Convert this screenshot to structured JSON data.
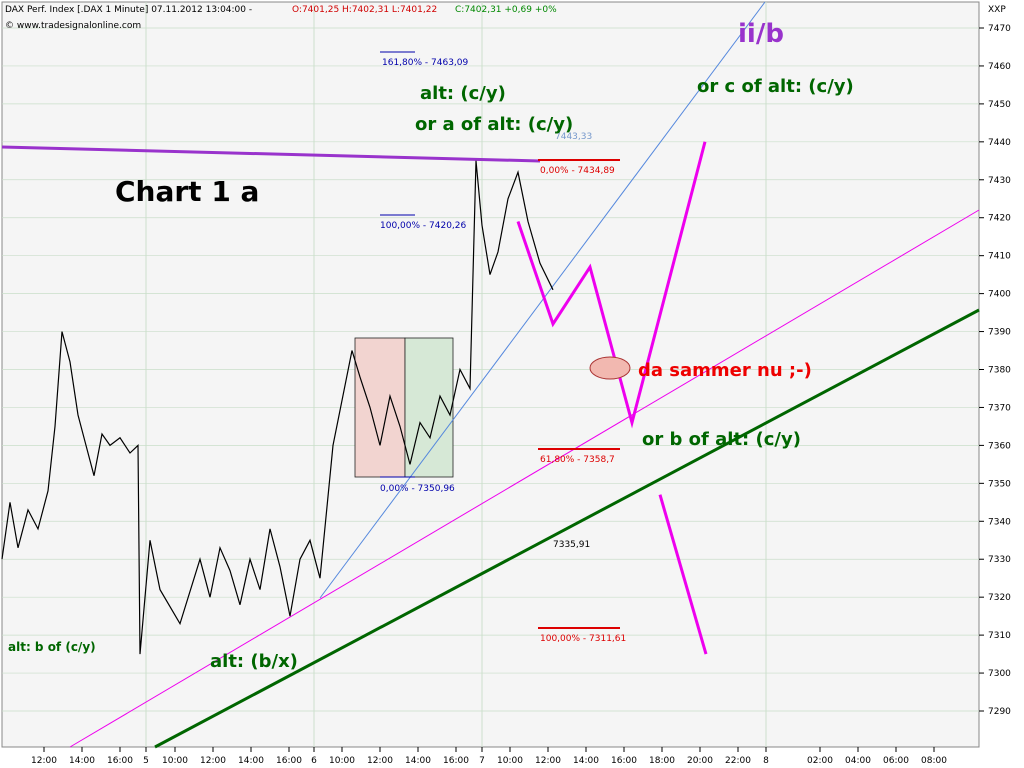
{
  "header": {
    "instrument": "DAX Perf. Index [.DAX  1 Minute] 07.11.2012 13:04:00 -",
    "ohl": "O:7401,25 H:7402,31 L:7401,22",
    "close": "C:7402,31 +0,69 +0%",
    "copyright": "© www.tradesignalonline.com",
    "axis_unit": "XXP"
  },
  "colors": {
    "background": "#f5f5f5",
    "grid": "#c9dec9",
    "price": "#000000",
    "purple_line": "#9933cc",
    "magenta": "#ee00ee",
    "green_line": "#006600",
    "fib_blue": "#0000aa",
    "fib_red": "#dd0000",
    "annotation_green": "#006600",
    "annotation_red": "#ee0000",
    "annotation_purple": "#9933cc"
  },
  "chart_data": {
    "type": "line",
    "title": "Chart 1 a",
    "ylim": [
      7280,
      7475
    ],
    "y_ticks": [
      "7290",
      "7300",
      "7310",
      "7320",
      "7330",
      "7340",
      "7350",
      "7360",
      "7370",
      "7380",
      "7390",
      "7400",
      "7410",
      "7420",
      "7430",
      "7440",
      "7450",
      "7460",
      "7470"
    ],
    "x_ticks": [
      "12:00",
      "14:00",
      "16:00",
      "5",
      "10:00",
      "12:00",
      "14:00",
      "16:00",
      "6",
      "10:00",
      "12:00",
      "14:00",
      "16:00",
      "7",
      "10:00",
      "12:00",
      "14:00",
      "16:00",
      "18:00",
      "20:00",
      "22:00",
      "8",
      "02:00",
      "04:00",
      "06:00",
      "08:00"
    ],
    "series": [
      {
        "type": "price",
        "values": [
          7330,
          7345,
          7333,
          7343,
          7338,
          7348,
          7365,
          7390,
          7382,
          7368,
          7360,
          7352,
          7363,
          7360,
          7362,
          7358,
          7360,
          7305,
          7335,
          7322,
          7313,
          7330,
          7320,
          7333,
          7327,
          7318,
          7330,
          7322,
          7338,
          7328,
          7315,
          7330,
          7335,
          7325,
          7360,
          7385,
          7378,
          7370,
          7360,
          7373,
          7365,
          7355,
          7366,
          7362,
          7373,
          7368,
          7380,
          7375,
          7435,
          7418,
          7405,
          7411,
          7425,
          7432,
          7419,
          7408,
          7401
        ]
      },
      {
        "type": "projection",
        "values": [
          7419,
          7392,
          7407,
          7366,
          7440,
          7347,
          7305
        ]
      }
    ],
    "fib_levels": [
      {
        "label": "161,80% - 7463,09",
        "value": 7463.09,
        "color": "blue"
      },
      {
        "label": "100,00% - 7420,26",
        "value": 7420.26,
        "color": "blue"
      },
      {
        "label": "0,00% - 7350,96",
        "value": 7350.96,
        "color": "blue"
      },
      {
        "label": "0,00% - 7434,89",
        "value": 7434.89,
        "color": "red"
      },
      {
        "label": "61,80% - 7358,7",
        "value": 7358.7,
        "color": "red"
      },
      {
        "label": "100,00% - 7311,61",
        "value": 7311.61,
        "color": "red"
      }
    ],
    "level_labels": [
      "7443,33",
      "7335,91"
    ],
    "annotations": [
      {
        "text": "ii/b",
        "color": "purple"
      },
      {
        "text": "or c of alt: (c/y)",
        "color": "green"
      },
      {
        "text": "alt: (c/y)",
        "color": "green"
      },
      {
        "text": "or a of alt: (c/y)",
        "color": "green"
      },
      {
        "text": "da sammer nu ;-)",
        "color": "red"
      },
      {
        "text": "or b of alt: (c/y)",
        "color": "green"
      },
      {
        "text": "alt: (b/x)",
        "color": "green"
      },
      {
        "text": "alt: b of (c/y)",
        "color": "green"
      }
    ],
    "grid": true
  }
}
